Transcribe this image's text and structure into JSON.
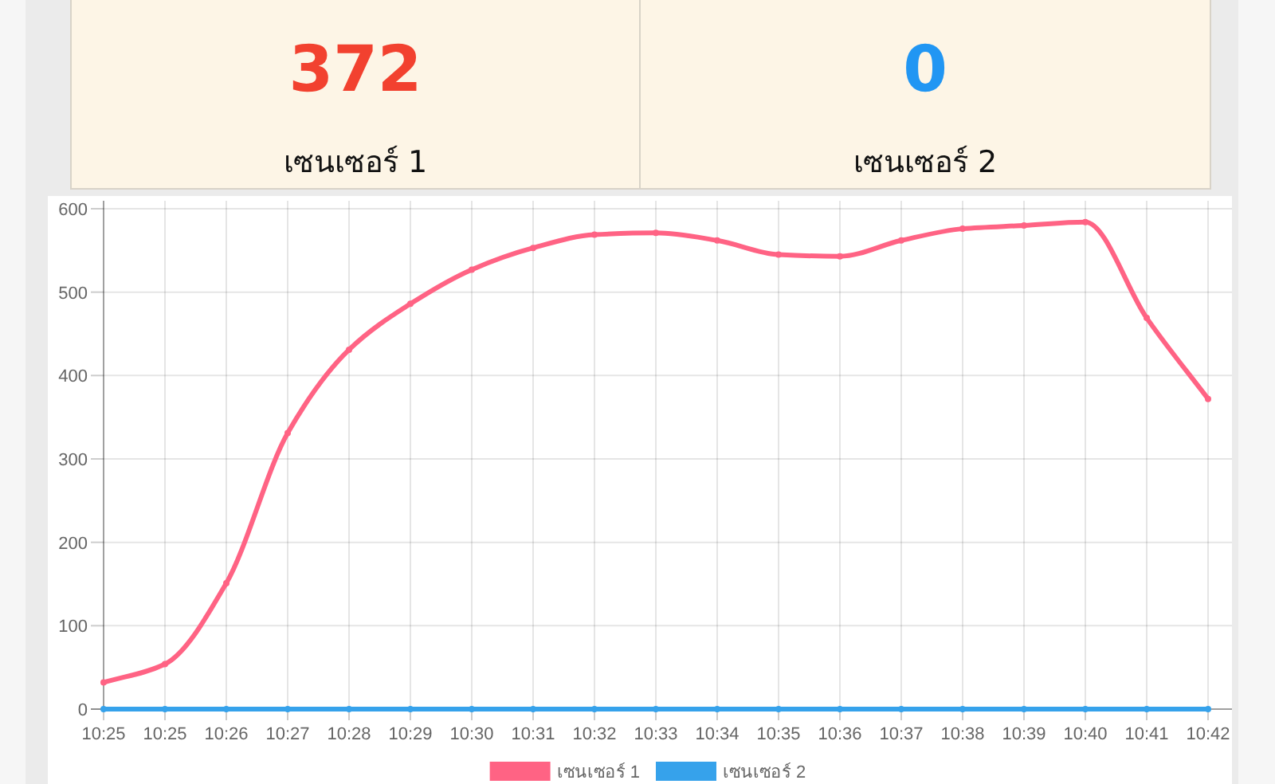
{
  "chart_data": [
    {
      "type": "other",
      "title": "เซนเซอร์ 1",
      "annotations": [
        "372"
      ],
      "color": "#f2412f"
    },
    {
      "type": "other",
      "title": "เซนเซอร์ 2",
      "annotations": [
        "0"
      ],
      "color": "#2196f3"
    },
    {
      "type": "line",
      "categories": [
        "10:25",
        "10:25",
        "10:26",
        "10:27",
        "10:28",
        "10:29",
        "10:30",
        "10:31",
        "10:32",
        "10:33",
        "10:34",
        "10:35",
        "10:36",
        "10:37",
        "10:38",
        "10:39",
        "10:40",
        "10:41",
        "10:42"
      ],
      "series": [
        {
          "name": "เซนเซอร์ 1",
          "color": "#ff6384",
          "values": [
            32,
            54,
            151,
            331,
            431,
            486,
            527,
            553,
            569,
            571,
            562,
            545,
            543,
            562,
            576,
            580,
            584,
            469,
            372
          ]
        },
        {
          "name": "เซนเซอร์ 2",
          "color": "#36a2eb",
          "values": [
            0,
            0,
            0,
            0,
            0,
            0,
            0,
            0,
            0,
            0,
            0,
            0,
            0,
            0,
            0,
            0,
            0,
            0,
            0
          ]
        }
      ],
      "ylim": [
        0,
        600
      ],
      "yticks": [
        0,
        100,
        200,
        300,
        400,
        500,
        600
      ],
      "grid": true,
      "legend": "bottom",
      "marker": "circle"
    }
  ]
}
